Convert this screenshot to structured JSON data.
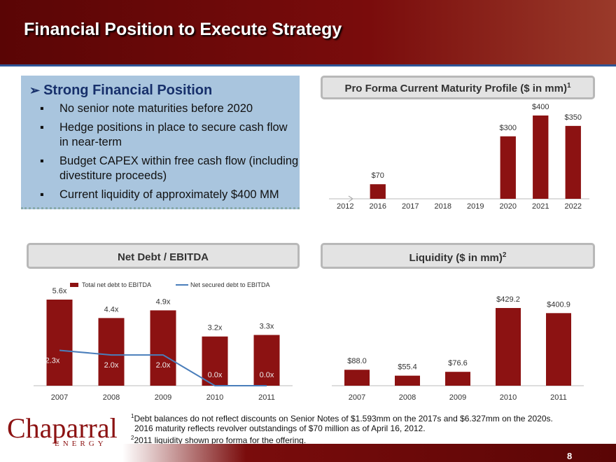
{
  "header": {
    "title": "Financial Position to Execute Strategy"
  },
  "panel": {
    "heading": "Strong Financial Position",
    "bullets": [
      "No senior note maturities before 2020",
      "Hedge positions in place to secure cash flow in near-term",
      "Budget CAPEX within free cash flow (including divestiture proceeds)",
      "Current liquidity of approximately $400 MM"
    ]
  },
  "chart_data": [
    {
      "type": "bar",
      "title": "Pro Forma Current Maturity Profile ($ in mm)",
      "title_note": "1",
      "categories": [
        "2012",
        "2016",
        "2017",
        "2018",
        "2019",
        "2020",
        "2021",
        "2022"
      ],
      "series": [
        {
          "type": "bar",
          "color": "#8c1212",
          "values": [
            null,
            70,
            null,
            null,
            null,
            300,
            400,
            350
          ],
          "value_labels": [
            null,
            "$70",
            null,
            null,
            null,
            "$300",
            "$400",
            "$350"
          ]
        }
      ]
    },
    {
      "type": "bar",
      "title": "Net Debt / EBITDA",
      "categories": [
        "2007",
        "2008",
        "2009",
        "2010",
        "2011"
      ],
      "series": [
        {
          "name": "Total net debt to EBITDA",
          "type": "bar",
          "color": "#8c1212",
          "values": [
            5.6,
            4.4,
            4.9,
            3.2,
            3.3
          ],
          "value_labels": [
            "5.6x",
            "4.4x",
            "4.9x",
            "3.2x",
            "3.3x"
          ]
        },
        {
          "name": "Net secured debt to EBITDA",
          "type": "line",
          "color": "#4a7ebb",
          "values": [
            2.3,
            2.0,
            2.0,
            0.0,
            0.0
          ],
          "value_labels": [
            "2.3x",
            "2.0x",
            "2.0x",
            "0.0x",
            "0.0x"
          ]
        }
      ]
    },
    {
      "type": "bar",
      "title": "Liquidity ($ in mm)",
      "title_note": "2",
      "categories": [
        "2007",
        "2008",
        "2009",
        "2010",
        "2011"
      ],
      "series": [
        {
          "type": "bar",
          "color": "#8c1212",
          "values": [
            88.0,
            55.4,
            76.6,
            429.2,
            400.9
          ],
          "value_labels": [
            "$88.0",
            "$55.4",
            "$76.6",
            "$429.2",
            "$400.9"
          ]
        }
      ]
    }
  ],
  "footnotes": [
    {
      "mark": "1",
      "text": "Debt balances do not reflect discounts on Senior Notes of $1.593mm on the 2017s and $6.327mm on the 2020s."
    },
    {
      "text": "2016 maturity reflects revolver outstandings of $70 million as of April 16, 2012."
    },
    {
      "mark": "2",
      "text": "2011 liquidity shown pro forma for the offering."
    }
  ],
  "logo": {
    "name": "Chaparral",
    "sub": "ENERGY"
  },
  "page_number": "8"
}
